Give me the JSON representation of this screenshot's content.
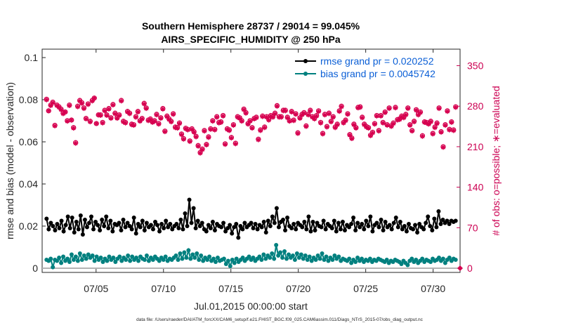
{
  "chart_data": {
    "type": "line",
    "title_lines": [
      "Southern Hemisphere 28737 / 29014 = 99.045%",
      "AIRS_SPECIFIC_HUMIDITY @ 250 hPa"
    ],
    "xlabel": "Jul.01,2015 00:00:00 start",
    "ylabel": "rmse and bias (model - observation)",
    "ylabel_right": "# of obs: o=possible; ∗=evaluated",
    "footnote": "data file: /Users/raeder/DAI/ATM_forcXX/CAM6_setup/f.e21.FHIST_BGC.f09_025.CAM6assim.011/Diags_NTrS_2015-07/obs_diag_output.nc",
    "x_range": [
      1,
      32
    ],
    "x_ticks": [
      5,
      10,
      15,
      20,
      25,
      30
    ],
    "x_tick_labels": [
      "07/05",
      "07/10",
      "07/15",
      "07/20",
      "07/25",
      "07/30"
    ],
    "ylim": [
      -0.002,
      0.104
    ],
    "y_ticks": [
      0,
      0.02,
      0.04,
      0.06,
      0.08,
      0.1
    ],
    "y_tick_labels": [
      "0",
      "0.02",
      "0.04",
      "0.06",
      "0.08",
      "0.1"
    ],
    "ylim_right": [
      -7.28,
      378.56
    ],
    "y_ticks_right": [
      0,
      70,
      140,
      210,
      280,
      350
    ],
    "y_tick_labels_right": [
      "0",
      "70",
      "140",
      "210",
      "280",
      "350"
    ],
    "colors": {
      "rmse": "#000000",
      "bias": "#00807f",
      "obs": "#d6004f",
      "zero_line": "#b3b3b3",
      "legend_text": "#0b5fd6",
      "right_axis": "#cc0052"
    },
    "series": [
      {
        "name": "rmse grand pr = 0.020252",
        "values": [
          0.0235,
          0.0185,
          0.0215,
          0.02,
          0.018,
          0.021,
          0.019,
          0.0225,
          0.0175,
          0.0205,
          0.0245,
          0.019,
          0.024,
          0.017,
          0.022,
          0.0185,
          0.025,
          0.016,
          0.023,
          0.0195,
          0.0215,
          0.0245,
          0.0185,
          0.022,
          0.0205,
          0.018,
          0.023,
          0.02,
          0.0245,
          0.019,
          0.0225,
          0.0175,
          0.021,
          0.0205,
          0.0215,
          0.018,
          0.023,
          0.0195,
          0.0215,
          0.02,
          0.0185,
          0.024,
          0.0165,
          0.021,
          0.0195,
          0.0225,
          0.018,
          0.0215,
          0.0195,
          0.0205,
          0.0185,
          0.022,
          0.0205,
          0.0175,
          0.021,
          0.019,
          0.0225,
          0.0195,
          0.021,
          0.0185,
          0.02,
          0.021,
          0.019,
          0.023,
          0.0185,
          0.026,
          0.02,
          0.0325,
          0.0215,
          0.0285,
          0.019,
          0.0225,
          0.02,
          0.0215,
          0.0185,
          0.0175,
          0.0205,
          0.019,
          0.022,
          0.018,
          0.021,
          0.02,
          0.0195,
          0.0215,
          0.0175,
          0.019,
          0.0205,
          0.0165,
          0.0195,
          0.021,
          0.0145,
          0.02,
          0.0185,
          0.0215,
          0.0195,
          0.0205,
          0.0215,
          0.019,
          0.021,
          0.0185,
          0.0205,
          0.0195,
          0.022,
          0.017,
          0.0225,
          0.02,
          0.0245,
          0.0215,
          0.0285,
          0.0195,
          0.022,
          0.023,
          0.018,
          0.024,
          0.02,
          0.019,
          0.021,
          0.0185,
          0.0215,
          0.0205,
          0.0195,
          0.022,
          0.0185,
          0.0245,
          0.0175,
          0.022,
          0.018,
          0.0215,
          0.02,
          0.0195,
          0.0225,
          0.0185,
          0.021,
          0.02,
          0.019,
          0.0225,
          0.0175,
          0.0215,
          0.0185,
          0.022,
          0.018,
          0.0205,
          0.0195,
          0.021,
          0.024,
          0.018,
          0.0215,
          0.0195,
          0.021,
          0.0185,
          0.0225,
          0.02,
          0.0245,
          0.0175,
          0.0205,
          0.0215,
          0.0195,
          0.023,
          0.018,
          0.022,
          0.0195,
          0.0205,
          0.0185,
          0.0215,
          0.024,
          0.0195,
          0.022,
          0.0185,
          0.02,
          0.0175,
          0.021,
          0.019,
          0.0185,
          0.0205,
          0.017,
          0.021,
          0.0195,
          0.0185,
          0.0215,
          0.0245,
          0.02,
          0.018,
          0.0235,
          0.0195,
          0.027,
          0.021,
          0.023,
          0.0215,
          0.0225,
          0.021,
          0.0225,
          0.022,
          0.0225
        ]
      },
      {
        "name": "bias grand pr = 0.0045742",
        "values": [
          0.004,
          0.0035,
          0.0045,
          0.0005,
          0.004,
          0.0035,
          0.005,
          0.0025,
          0.0055,
          0.0035,
          0.0045,
          0.003,
          0.0065,
          0.004,
          0.0055,
          0.0035,
          0.007,
          0.004,
          0.006,
          0.0045,
          0.0065,
          0.005,
          0.006,
          0.0035,
          0.0055,
          0.004,
          0.005,
          0.003,
          0.0045,
          0.0035,
          0.0055,
          0.004,
          0.005,
          0.003,
          0.0045,
          0.0055,
          0.0035,
          0.005,
          0.004,
          0.006,
          0.0035,
          0.0055,
          0.004,
          0.005,
          0.0035,
          0.0055,
          0.0045,
          0.004,
          0.006,
          0.0035,
          0.005,
          0.004,
          0.0055,
          0.0045,
          0.0035,
          0.005,
          0.004,
          0.0055,
          0.0035,
          0.0045,
          0.004,
          0.005,
          0.006,
          0.004,
          0.007,
          0.0045,
          0.0075,
          0.005,
          0.0085,
          0.0045,
          0.0065,
          0.005,
          0.007,
          0.004,
          0.006,
          0.0035,
          0.005,
          0.004,
          0.0055,
          0.0035,
          0.0045,
          0.003,
          0.005,
          0.0035,
          0.004,
          0.0045,
          0.002,
          0.0035,
          0.001,
          0.004,
          0.0025,
          0.0045,
          0.003,
          0.004,
          0.005,
          0.0035,
          0.0045,
          0.0055,
          0.004,
          0.005,
          0.0035,
          0.0045,
          0.0055,
          0.004,
          0.0065,
          0.0045,
          0.006,
          0.005,
          0.007,
          0.0045,
          0.011,
          0.006,
          0.0075,
          0.005,
          0.008,
          0.0045,
          0.0065,
          0.005,
          0.006,
          0.004,
          0.007,
          0.005,
          0.0065,
          0.0045,
          0.006,
          0.004,
          0.0055,
          0.0035,
          0.005,
          0.004,
          0.006,
          0.0045,
          0.007,
          0.004,
          0.0055,
          0.0035,
          0.005,
          0.004,
          0.006,
          0.0045,
          0.0055,
          0.0035,
          0.0045,
          0.004,
          0.0035,
          0.0045,
          0.0025,
          0.004,
          0.003,
          0.005,
          0.0035,
          0.0045,
          0.003,
          0.004,
          0.0035,
          0.0045,
          0.003,
          0.004,
          0.0035,
          0.0045,
          0.004,
          0.0035,
          0.003,
          0.004,
          0.0025,
          0.0035,
          0.003,
          0.004,
          0.0035,
          0.003,
          0.002,
          0.0035,
          0.0025,
          0.0015,
          0.0035,
          0.0045,
          0.003,
          0.004,
          0.0025,
          0.0035,
          0.0045,
          0.003,
          0.004,
          0.0035,
          0.003,
          0.0045,
          0.0035,
          0.004,
          0.005,
          0.0035,
          0.0045,
          0.0025,
          0.004,
          0.005,
          0.0035,
          0.0045,
          0.004
        ]
      }
    ],
    "obs_possible": [
      292,
      272,
      282,
      287,
      247,
      282,
      279,
      275,
      268,
      270,
      255,
      282,
      256,
      243,
      217,
      280,
      290,
      286,
      277,
      259,
      284,
      254,
      290,
      294,
      250,
      265,
      265,
      252,
      273,
      265,
      276,
      260,
      283,
      268,
      260,
      265,
      290,
      254,
      252,
      271,
      268,
      249,
      248,
      262,
      271,
      255,
      259,
      285,
      277,
      256,
      258,
      253,
      255,
      266,
      250,
      260,
      276,
      237,
      263,
      258,
      254,
      267,
      244,
      243,
      251,
      232,
      224,
      242,
      240,
      220,
      241,
      236,
      228,
      212,
      200,
      206,
      238,
      214,
      227,
      241,
      255,
      240,
      262,
      252,
      253,
      264,
      215,
      241,
      239,
      226,
      248,
      216,
      262,
      260,
      255,
      275,
      269,
      250,
      255,
      243,
      259,
      261,
      223,
      239,
      263,
      244,
      262,
      257,
      264,
      262,
      268,
      281,
      262,
      262,
      273,
      273,
      261,
      255,
      271,
      256,
      267,
      234,
      260,
      266,
      269,
      246,
      266,
      273,
      262,
      259,
      264,
      272,
      252,
      233,
      266,
      245,
      268,
      254,
      262,
      244,
      249,
      272,
      280,
      252,
      256,
      267,
      231,
      225,
      249,
      243,
      278,
      279,
      261,
      249,
      245,
      243,
      230,
      235,
      250,
      264,
      238,
      264,
      252,
      270,
      248,
      277,
      246,
      251,
      278,
      257,
      258,
      263,
      261,
      266,
      277,
      248,
      238,
      254,
      274,
      266,
      270,
      229,
      253,
      252,
      250,
      254,
      233,
      244,
      251,
      277,
      236,
      210,
      248,
      272,
      240,
      253,
      239,
      279
    ],
    "obs_evaluated": [
      291,
      272,
      281,
      286,
      246,
      281,
      278,
      274,
      267,
      270,
      254,
      281,
      256,
      242,
      216,
      279,
      289,
      285,
      276,
      258,
      283,
      253,
      289,
      294,
      250,
      265,
      264,
      251,
      272,
      264,
      275,
      259,
      282,
      267,
      259,
      264,
      289,
      253,
      251,
      270,
      267,
      248,
      247,
      261,
      270,
      254,
      258,
      284,
      276,
      255,
      257,
      252,
      254,
      265,
      249,
      259,
      275,
      236,
      262,
      257,
      253,
      266,
      243,
      242,
      250,
      231,
      223,
      241,
      239,
      219,
      240,
      235,
      227,
      211,
      199,
      205,
      237,
      213,
      226,
      240,
      254,
      239,
      261,
      251,
      252,
      263,
      214,
      240,
      238,
      225,
      247,
      215,
      261,
      259,
      254,
      274,
      268,
      249,
      254,
      242,
      258,
      260,
      222,
      238,
      262,
      243,
      261,
      256,
      263,
      261,
      267,
      280,
      261,
      261,
      272,
      272,
      260,
      254,
      270,
      255,
      266,
      233,
      259,
      265,
      268,
      245,
      265,
      272,
      261,
      258,
      263,
      271,
      251,
      232,
      265,
      244,
      267,
      253,
      261,
      243,
      248,
      271,
      279,
      251,
      255,
      266,
      230,
      224,
      248,
      242,
      277,
      278,
      260,
      248,
      244,
      242,
      229,
      234,
      249,
      263,
      237,
      263,
      251,
      269,
      247,
      276,
      245,
      250,
      277,
      256,
      257,
      262,
      260,
      265,
      276,
      247,
      237,
      253,
      273,
      265,
      269,
      228,
      252,
      251,
      249,
      253,
      232,
      243,
      250,
      276,
      235,
      209,
      247,
      271,
      239,
      252,
      238,
      278
    ]
  }
}
